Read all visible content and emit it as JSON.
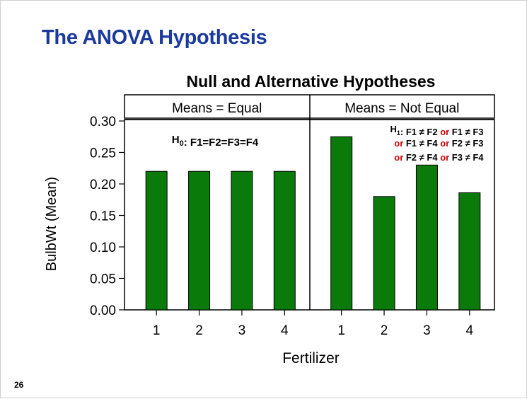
{
  "slide": {
    "title": "The ANOVA Hypothesis",
    "page_number": "26"
  },
  "colors": {
    "title": "#1a3a9c",
    "bar_fill": "#0a7a0a",
    "bar_stroke": "#000000",
    "alt_connector": "#cc0000"
  },
  "chart_data": {
    "type": "bar",
    "title": "Null and Alternative Hypotheses",
    "xlabel": "Fertilizer",
    "ylabel": "BulbWt (Mean)",
    "ylim": [
      0,
      0.3
    ],
    "yticks": [
      0.0,
      0.05,
      0.1,
      0.15,
      0.2,
      0.25,
      0.3
    ],
    "ytick_labels": [
      "0.00",
      "0.05",
      "0.10",
      "0.15",
      "0.20",
      "0.25",
      "0.30"
    ],
    "grid": false,
    "panels": [
      {
        "header": "Means = Equal",
        "categories": [
          "1",
          "2",
          "3",
          "4"
        ],
        "values": [
          0.22,
          0.22,
          0.22,
          0.22
        ],
        "annotation": {
          "lines": [
            [
              {
                "text": "H",
                "bold": true
              },
              {
                "text": "0",
                "sub": true,
                "bold": true
              },
              {
                "text": ": F1=F2=F3=F4",
                "bold": true
              }
            ]
          ]
        }
      },
      {
        "header": "Means = Not Equal",
        "categories": [
          "1",
          "2",
          "3",
          "4"
        ],
        "values": [
          0.275,
          0.18,
          0.23,
          0.186
        ],
        "annotation": {
          "lines": [
            [
              {
                "text": "H",
                "bold": true
              },
              {
                "text": "1",
                "sub": true,
                "bold": true
              },
              {
                "text": ": F1 ≠ F2 ",
                "bold": true
              },
              {
                "text": "or",
                "bold": true,
                "color": "#cc0000"
              },
              {
                "text": " F1 ≠ F3",
                "bold": true
              }
            ],
            [
              {
                "text": "or",
                "bold": true,
                "color": "#cc0000"
              },
              {
                "text": " F1 ≠ F4 ",
                "bold": true
              },
              {
                "text": "or",
                "bold": true,
                "color": "#cc0000"
              },
              {
                "text": " F2 ≠ F3",
                "bold": true
              }
            ],
            [
              {
                "text": "or",
                "bold": true,
                "color": "#cc0000"
              },
              {
                "text": " F2 ≠ F4 ",
                "bold": true
              },
              {
                "text": "or",
                "bold": true,
                "color": "#cc0000"
              },
              {
                "text": " F3 ≠ F4",
                "bold": true
              }
            ]
          ]
        }
      }
    ]
  }
}
